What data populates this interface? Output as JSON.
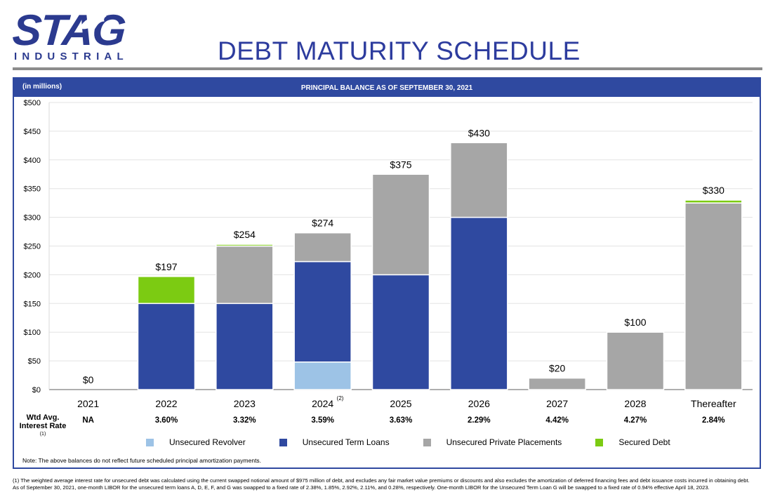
{
  "logo": {
    "main": "STAG",
    "sub": "INDUSTRIAL"
  },
  "page_title": "DEBT MATURITY SCHEDULE",
  "panel": {
    "units": "(in millions)",
    "title": "PRINCIPAL BALANCE AS OF SEPTEMBER 30, 2021"
  },
  "colors": {
    "brand": "#2b3a8f",
    "panel": "#2f49a0",
    "unsecured_revolver": "#9dc3e6",
    "unsecured_term_loans": "#2f49a0",
    "unsecured_private_placements": "#a6a6a6",
    "secured_debt": "#7ccb12"
  },
  "chart_data": {
    "type": "bar",
    "stacked": true,
    "ylim": [
      0,
      500
    ],
    "y_ticks": [
      "$0",
      "$50",
      "$100",
      "$150",
      "$200",
      "$250",
      "$300",
      "$350",
      "$400",
      "$450",
      "$500"
    ],
    "categories": [
      "2021",
      "2022",
      "2023",
      "2024",
      "2025",
      "2026",
      "2027",
      "2028",
      "Thereafter"
    ],
    "category_footnotes": {
      "2024": "(2)"
    },
    "series": [
      {
        "name": "Unsecured Revolver",
        "color": "#9dc3e6",
        "values": [
          0,
          0,
          0,
          48,
          0,
          0,
          0,
          0,
          0
        ]
      },
      {
        "name": "Unsecured Term Loans",
        "color": "#2f49a0",
        "values": [
          0,
          150,
          150,
          175,
          200,
          300,
          0,
          0,
          0
        ]
      },
      {
        "name": "Unsecured Private Placements",
        "color": "#a6a6a6",
        "values": [
          0,
          0,
          100,
          50,
          175,
          130,
          20,
          100,
          325
        ]
      },
      {
        "name": "Secured Debt",
        "color": "#7ccb12",
        "values": [
          0,
          47,
          3,
          0,
          0,
          0,
          0,
          0,
          5
        ]
      }
    ],
    "totals": [
      "$0",
      "$197",
      "$254",
      "$274",
      "$375",
      "$430",
      "$20",
      "$100",
      "$330"
    ],
    "wtd_avg_interest_rate": {
      "label": "Wtd Avg. Interest Rate",
      "footnote": "(1)",
      "values": [
        "NA",
        "3.60%",
        "3.32%",
        "3.59%",
        "3.63%",
        "2.29%",
        "4.42%",
        "4.27%",
        "2.84%"
      ]
    },
    "legend_position": "bottom",
    "grid": "horizontal"
  },
  "legend": [
    {
      "label": "Unsecured Revolver",
      "color": "#9dc3e6"
    },
    {
      "label": "Unsecured Term Loans",
      "color": "#2f49a0"
    },
    {
      "label": "Unsecured Private Placements",
      "color": "#a6a6a6"
    },
    {
      "label": "Secured Debt",
      "color": "#7ccb12"
    }
  ],
  "note": "Note: The above balances do not reflect future scheduled principal amortization payments.",
  "footnote": "(1) The weighted average interest rate for unsecured debt was calculated using the current swapped notional amount of $975 million of debt, and excludes any fair market value premiums or discounts and also excludes the amortization of deferred financing fees and debt issuance costs incurred in obtaining debt. As of September 30, 2021, one-month LIBOR for the unsecured term loans A, D, E, F, and G was swapped to a fixed rate of 2.38%, 1.85%, 2.92%, 2.11%, and 0.28%, respectively. One-month LIBOR for the Unsecured Term Loan G will be swapped to a fixed rate of 0.94% effective April 18, 2023."
}
